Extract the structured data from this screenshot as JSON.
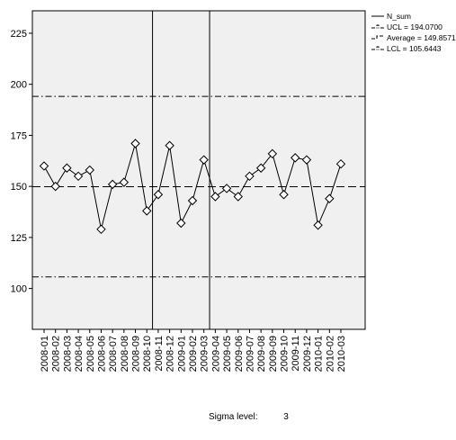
{
  "chart_data": {
    "type": "line",
    "title": "",
    "xlabel": "",
    "ylabel": "",
    "ylim": [
      80,
      236
    ],
    "yticks": [
      100,
      125,
      150,
      175,
      200,
      225
    ],
    "categories": [
      "2008-01",
      "2008-02",
      "2008-03",
      "2008-04",
      "2008-05",
      "2008-06",
      "2008-07",
      "2008-08",
      "2008-09",
      "2008-10",
      "2008-11",
      "2008-12",
      "2009-01",
      "2009-02",
      "2009-03",
      "2009-04",
      "2009-05",
      "2009-06",
      "2009-07",
      "2009-08",
      "2009-09",
      "2009-10",
      "2009-11",
      "2009-12",
      "2010-01",
      "2010-02",
      "2010-03"
    ],
    "series": [
      {
        "name": "N_sum",
        "values": [
          160,
          150,
          159,
          155,
          158,
          129,
          151,
          152,
          171,
          138,
          146,
          170,
          132,
          143,
          163,
          145,
          149,
          145,
          155,
          159,
          166,
          146,
          164,
          163,
          131,
          144,
          161
        ]
      }
    ],
    "control_lines": {
      "ucl": 194.07,
      "average": 149.8571,
      "lcl": 105.6443
    },
    "phase_breaks_after": [
      "2008-10",
      "2009-03"
    ],
    "legend": [
      {
        "label": "N_sum",
        "style": "solid"
      },
      {
        "label": "UCL = 194.0700",
        "style": "dashdot"
      },
      {
        "label": "Average = 149.8571",
        "style": "dashed"
      },
      {
        "label": "LCL = 105.6443",
        "style": "dashdot"
      }
    ],
    "legend_position": "top-right",
    "grid": false,
    "colors": {
      "plot_bg": "#f0f0f0",
      "line": "#000000"
    }
  },
  "footer": {
    "sigma_label": "Sigma level:",
    "sigma_value": "3"
  }
}
